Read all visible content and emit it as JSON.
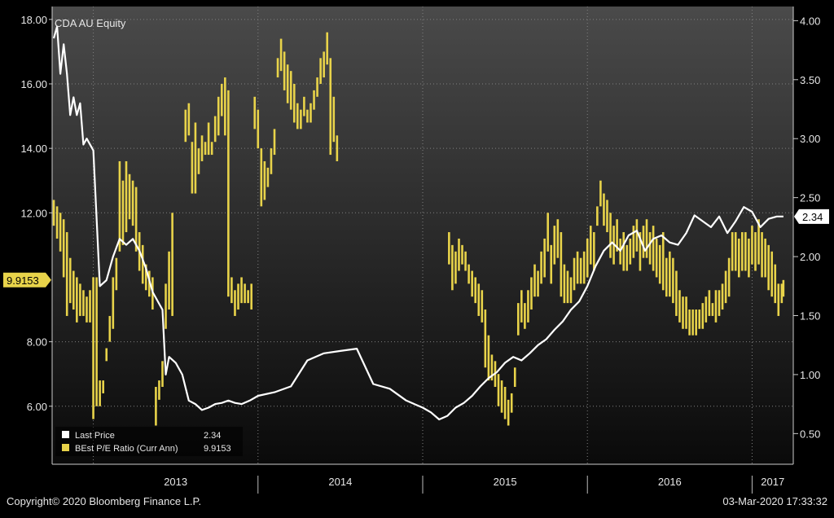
{
  "footer": {
    "copyright": "Copyright© 2020 Bloomberg Finance L.P.",
    "timestamp": "03-Mar-2020 17:33:32"
  },
  "colors": {
    "background": "#000000",
    "plot_top": "#4a4a4a",
    "plot_bottom": "#0a0a0a",
    "price_line": "#ffffff",
    "pe_bars": "#e8d34a",
    "grid": "#808080"
  },
  "chart_data": {
    "type": "line",
    "title": "CDA AU Equity",
    "x_axis": {
      "categories": [
        "2013",
        "2014",
        "2015",
        "2016",
        "2017"
      ],
      "start": 2012.75,
      "end": 2017.25
    },
    "left_axis": {
      "ticks": [
        "6.00",
        "8.00",
        "12.00",
        "14.00",
        "16.00",
        "18.00"
      ],
      "tick_values": [
        6,
        8,
        12,
        14,
        16,
        18
      ],
      "range": [
        4.2,
        18.4
      ]
    },
    "right_axis": {
      "ticks": [
        "0.50",
        "1.00",
        "1.50",
        "2.00",
        "2.50",
        "3.00",
        "3.50",
        "4.00"
      ],
      "tick_values": [
        0.5,
        1.0,
        1.5,
        2.0,
        2.5,
        3.0,
        3.5,
        4.0
      ],
      "range": [
        0.24,
        4.12
      ]
    },
    "grid": true,
    "legend_position": "bottom-left",
    "legend": [
      {
        "name": "Last Price",
        "value": "2.34",
        "color": "#ffffff"
      },
      {
        "name": "BEst P/E Ratio (Curr Ann)",
        "value": "9.9153",
        "color": "#e8d34a"
      }
    ],
    "last_value_labels": {
      "price": {
        "value": 2.34,
        "label": "2.34"
      },
      "pe": {
        "value": 9.9153,
        "label": "9.9153"
      }
    },
    "series": [
      {
        "name": "Last Price",
        "axis": "right",
        "color": "#ffffff",
        "x": [
          2012.76,
          2012.78,
          2012.8,
          2012.82,
          2012.84,
          2012.86,
          2012.88,
          2012.9,
          2012.92,
          2012.94,
          2012.96,
          2013.0,
          2013.04,
          2013.08,
          2013.12,
          2013.16,
          2013.2,
          2013.24,
          2013.28,
          2013.32,
          2013.36,
          2013.4,
          2013.42,
          2013.44,
          2013.46,
          2013.5,
          2013.54,
          2013.58,
          2013.62,
          2013.66,
          2013.7,
          2013.74,
          2013.78,
          2013.82,
          2013.86,
          2013.9,
          2013.95,
          2014.0,
          2014.1,
          2014.2,
          2014.3,
          2014.4,
          2014.5,
          2014.6,
          2014.7,
          2014.8,
          2014.9,
          2015.0,
          2015.05,
          2015.1,
          2015.15,
          2015.2,
          2015.25,
          2015.3,
          2015.35,
          2015.4,
          2015.45,
          2015.5,
          2015.55,
          2015.6,
          2015.65,
          2015.7,
          2015.75,
          2015.8,
          2015.85,
          2015.9,
          2015.95,
          2016.0,
          2016.05,
          2016.1,
          2016.15,
          2016.2,
          2016.25,
          2016.3,
          2016.35,
          2016.4,
          2016.45,
          2016.5,
          2016.55,
          2016.6,
          2016.65,
          2016.7,
          2016.75,
          2016.8,
          2016.85,
          2016.9,
          2016.95,
          2017.0,
          2017.05,
          2017.1,
          2017.15,
          2017.19
        ],
        "y": [
          3.85,
          3.95,
          3.55,
          3.8,
          3.55,
          3.2,
          3.35,
          3.2,
          3.3,
          2.95,
          3.0,
          2.9,
          1.75,
          1.8,
          2.0,
          2.15,
          2.1,
          2.15,
          2.05,
          1.9,
          1.7,
          1.6,
          1.55,
          1.0,
          1.15,
          1.1,
          1.0,
          0.78,
          0.75,
          0.7,
          0.72,
          0.75,
          0.76,
          0.78,
          0.76,
          0.75,
          0.78,
          0.82,
          0.85,
          0.9,
          1.12,
          1.18,
          1.2,
          1.22,
          0.92,
          0.88,
          0.78,
          0.72,
          0.68,
          0.62,
          0.65,
          0.72,
          0.76,
          0.82,
          0.9,
          0.97,
          1.02,
          1.1,
          1.15,
          1.12,
          1.18,
          1.25,
          1.3,
          1.38,
          1.45,
          1.55,
          1.62,
          1.75,
          1.92,
          2.05,
          2.12,
          2.05,
          2.18,
          2.22,
          2.05,
          2.15,
          2.18,
          2.12,
          2.1,
          2.2,
          2.35,
          2.3,
          2.25,
          2.34,
          2.2,
          2.3,
          2.42,
          2.38,
          2.25,
          2.32,
          2.34,
          2.34
        ]
      },
      {
        "name": "BEst P/E Ratio (Curr Ann)",
        "axis": "left",
        "color": "#e8d34a",
        "segments": [
          {
            "x": [
              2012.76,
              2012.78,
              2012.8,
              2012.82,
              2012.84,
              2012.86,
              2012.88,
              2012.9,
              2012.92,
              2012.94,
              2012.96,
              2012.98,
              2013.0,
              2013.02,
              2013.04,
              2013.06,
              2013.08,
              2013.1,
              2013.12,
              2013.14,
              2013.16,
              2013.18,
              2013.2,
              2013.22,
              2013.24,
              2013.26,
              2013.28,
              2013.3,
              2013.32,
              2013.34,
              2013.36,
              2013.38,
              2013.4,
              2013.42,
              2013.44,
              2013.46,
              2013.48
            ],
            "high": [
              12.4,
              12.2,
              12.0,
              11.8,
              11.4,
              10.6,
              10.2,
              10.0,
              9.8,
              9.6,
              9.4,
              9.6,
              10.0,
              10.0,
              6.8,
              6.8,
              7.8,
              8.8,
              10.0,
              10.6,
              13.6,
              13.0,
              13.6,
              13.2,
              13.0,
              12.8,
              11.4,
              11.0,
              10.4,
              10.2,
              10.0,
              6.6,
              6.8,
              7.4,
              9.8,
              10.8,
              12.0
            ],
            "low": [
              11.6,
              11.2,
              10.8,
              10.0,
              8.8,
              9.2,
              9.0,
              8.6,
              8.8,
              8.8,
              8.6,
              8.6,
              5.6,
              6.0,
              6.0,
              6.4,
              7.4,
              8.0,
              8.4,
              9.6,
              10.8,
              11.0,
              11.4,
              11.8,
              11.6,
              10.8,
              10.2,
              9.8,
              9.6,
              9.4,
              9.0,
              5.4,
              6.2,
              6.6,
              8.4,
              9.0,
              8.8
            ]
          },
          {
            "x": [
              2013.56,
              2013.58,
              2013.6,
              2013.62,
              2013.64,
              2013.66,
              2013.68,
              2013.7,
              2013.72,
              2013.74,
              2013.76,
              2013.78,
              2013.8,
              2013.82,
              2013.84,
              2013.86,
              2013.88,
              2013.9,
              2013.92,
              2013.94,
              2013.96,
              2013.98,
              2014.0,
              2014.02,
              2014.04,
              2014.06,
              2014.08,
              2014.1
            ],
            "high": [
              15.2,
              15.4,
              14.2,
              14.8,
              14.0,
              14.4,
              14.2,
              14.8,
              14.2,
              15.0,
              15.6,
              16.0,
              16.2,
              15.8,
              10.0,
              9.6,
              9.8,
              10.0,
              9.8,
              9.6,
              9.8,
              15.6,
              15.2,
              14.0,
              13.6,
              13.4,
              14.0,
              14.6
            ],
            "low": [
              14.2,
              14.4,
              12.6,
              12.6,
              13.2,
              13.6,
              13.8,
              13.8,
              13.8,
              14.2,
              14.4,
              15.0,
              14.4,
              9.4,
              9.2,
              8.8,
              9.0,
              9.2,
              9.2,
              9.2,
              9.0,
              14.6,
              14.0,
              12.2,
              12.4,
              12.8,
              13.2,
              13.8
            ]
          },
          {
            "x": [
              2014.12,
              2014.14,
              2014.16,
              2014.18,
              2014.2,
              2014.22,
              2014.24,
              2014.26,
              2014.28,
              2014.3,
              2014.32,
              2014.34,
              2014.36,
              2014.38,
              2014.4,
              2014.42,
              2014.44,
              2014.46,
              2014.48
            ],
            "high": [
              16.8,
              17.4,
              17.0,
              16.6,
              16.4,
              16.0,
              15.4,
              15.2,
              15.6,
              15.2,
              15.4,
              15.8,
              16.2,
              16.8,
              17.0,
              17.6,
              16.8,
              15.6,
              14.4
            ],
            "low": [
              16.2,
              16.4,
              15.8,
              15.4,
              15.2,
              14.8,
              14.6,
              14.6,
              15.0,
              14.8,
              14.8,
              15.2,
              15.6,
              16.0,
              16.2,
              16.6,
              13.8,
              14.2,
              13.6
            ]
          },
          {
            "x": [
              2015.16,
              2015.18,
              2015.2,
              2015.22,
              2015.24,
              2015.26,
              2015.28,
              2015.3,
              2015.32,
              2015.34,
              2015.36,
              2015.38,
              2015.4,
              2015.42,
              2015.44,
              2015.46,
              2015.48,
              2015.5,
              2015.52,
              2015.54,
              2015.56,
              2015.58,
              2015.6,
              2015.62,
              2015.64,
              2015.66,
              2015.68,
              2015.7,
              2015.72,
              2015.74,
              2015.76,
              2015.78,
              2015.8,
              2015.82,
              2015.84,
              2015.86,
              2015.88,
              2015.9,
              2015.92,
              2015.94,
              2015.96,
              2015.98,
              2016.0,
              2016.02,
              2016.04,
              2016.06,
              2016.08,
              2016.1,
              2016.12,
              2016.14,
              2016.16,
              2016.18,
              2016.2,
              2016.22,
              2016.24,
              2016.26,
              2016.28,
              2016.3,
              2016.32,
              2016.34,
              2016.36,
              2016.38,
              2016.4,
              2016.42,
              2016.44,
              2016.46,
              2016.48,
              2016.5,
              2016.52,
              2016.54,
              2016.56,
              2016.58,
              2016.6,
              2016.62,
              2016.64,
              2016.66,
              2016.68,
              2016.7,
              2016.72,
              2016.74,
              2016.76,
              2016.78,
              2016.8,
              2016.82,
              2016.84,
              2016.86,
              2016.88,
              2016.9,
              2016.92,
              2016.94,
              2016.96,
              2016.98,
              2017.0,
              2017.02,
              2017.04,
              2017.06,
              2017.08,
              2017.1,
              2017.12,
              2017.14,
              2017.16,
              2017.18,
              2017.19
            ],
            "high": [
              11.4,
              11.0,
              10.8,
              11.2,
              11.0,
              10.8,
              10.4,
              10.2,
              10.0,
              9.8,
              9.6,
              9.0,
              8.2,
              7.6,
              7.4,
              7.0,
              6.8,
              6.6,
              6.2,
              6.4,
              7.2,
              9.2,
              9.6,
              9.2,
              9.6,
              10.0,
              10.4,
              10.2,
              10.8,
              11.2,
              12.0,
              11.0,
              11.6,
              11.8,
              11.4,
              10.4,
              10.2,
              10.0,
              10.6,
              10.8,
              10.6,
              10.8,
              11.2,
              11.6,
              11.4,
              12.2,
              13.0,
              12.6,
              12.4,
              12.0,
              11.6,
              11.8,
              11.2,
              11.4,
              11.0,
              11.2,
              11.6,
              11.8,
              11.4,
              11.6,
              11.8,
              11.4,
              11.6,
              11.2,
              11.0,
              11.4,
              10.6,
              10.8,
              10.6,
              10.2,
              9.6,
              9.4,
              9.4,
              9.0,
              9.0,
              9.0,
              9.0,
              9.2,
              9.4,
              9.6,
              9.2,
              9.6,
              9.6,
              9.8,
              10.2,
              10.6,
              11.4,
              11.4,
              11.2,
              11.4,
              11.4,
              11.2,
              11.6,
              11.4,
              11.8,
              11.4,
              11.2,
              11.0,
              10.8,
              10.4,
              9.8,
              9.8,
              9.9153
            ],
            "low": [
              10.4,
              9.6,
              9.8,
              10.2,
              10.4,
              10.2,
              9.8,
              9.4,
              9.2,
              8.8,
              8.6,
              7.2,
              6.8,
              6.8,
              6.6,
              6.0,
              5.8,
              5.6,
              5.4,
              5.8,
              6.6,
              8.2,
              8.6,
              8.4,
              8.6,
              9.0,
              9.4,
              9.4,
              9.8,
              10.0,
              10.8,
              9.8,
              10.4,
              10.6,
              9.4,
              9.2,
              9.2,
              9.2,
              9.6,
              9.8,
              9.8,
              9.8,
              10.0,
              10.4,
              10.2,
              11.6,
              12.2,
              11.6,
              11.4,
              10.6,
              10.4,
              10.8,
              10.4,
              10.2,
              10.2,
              10.4,
              10.6,
              10.8,
              10.2,
              10.6,
              10.6,
              10.4,
              10.2,
              10.0,
              9.8,
              9.6,
              9.4,
              9.4,
              9.2,
              8.8,
              8.6,
              8.4,
              8.4,
              8.2,
              8.2,
              8.2,
              8.4,
              8.4,
              8.6,
              8.8,
              8.8,
              8.6,
              8.8,
              9.0,
              9.2,
              9.4,
              10.2,
              10.2,
              10.0,
              10.2,
              10.2,
              10.0,
              10.4,
              10.2,
              10.4,
              10.0,
              10.0,
              9.6,
              9.4,
              9.2,
              8.8,
              9.2,
              9.4
            ]
          }
        ]
      }
    ]
  }
}
